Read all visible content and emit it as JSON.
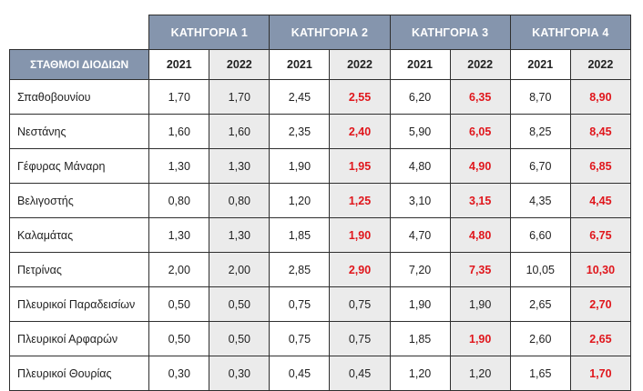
{
  "categories": [
    "ΚΑΤΗΓΟΡΙΑ 1",
    "ΚΑΤΗΓΟΡΙΑ 2",
    "ΚΑΤΗΓΟΡΙΑ 3",
    "ΚΑΤΗΓΟΡΙΑ 4"
  ],
  "stations_header": "ΣΤΑΘΜΟΙ ΔΙΟΔΙΩΝ",
  "years": [
    "2021",
    "2022"
  ],
  "colors": {
    "header_bg": "#8595ad",
    "header_text": "#ffffff",
    "increase_text": "#e0161c",
    "shaded_col": "#ebebeb"
  },
  "rows": [
    {
      "station": "Σπαθοβουνίου",
      "values": [
        "1,70",
        "1,70",
        "2,45",
        "2,55",
        "6,20",
        "6,35",
        "8,70",
        "8,90"
      ],
      "increased": [
        false,
        false,
        false,
        true,
        false,
        true,
        false,
        true
      ]
    },
    {
      "station": "Νεστάνης",
      "values": [
        "1,60",
        "1,60",
        "2,35",
        "2,40",
        "5,90",
        "6,05",
        "8,25",
        "8,45"
      ],
      "increased": [
        false,
        false,
        false,
        true,
        false,
        true,
        false,
        true
      ]
    },
    {
      "station": "Γέφυρας Μάναρη",
      "values": [
        "1,30",
        "1,30",
        "1,90",
        "1,95",
        "4,80",
        "4,90",
        "6,70",
        "6,85"
      ],
      "increased": [
        false,
        false,
        false,
        true,
        false,
        true,
        false,
        true
      ]
    },
    {
      "station": "Βελιγοστής",
      "values": [
        "0,80",
        "0,80",
        "1,20",
        "1,25",
        "3,10",
        "3,15",
        "4,35",
        "4,45"
      ],
      "increased": [
        false,
        false,
        false,
        true,
        false,
        true,
        false,
        true
      ]
    },
    {
      "station": "Καλαμάτας",
      "values": [
        "1,30",
        "1,30",
        "1,85",
        "1,90",
        "4,70",
        "4,80",
        "6,60",
        "6,75"
      ],
      "increased": [
        false,
        false,
        false,
        true,
        false,
        true,
        false,
        true
      ]
    },
    {
      "station": "Πετρίνας",
      "values": [
        "2,00",
        "2,00",
        "2,85",
        "2,90",
        "7,20",
        "7,35",
        "10,05",
        "10,30"
      ],
      "increased": [
        false,
        false,
        false,
        true,
        false,
        true,
        false,
        true
      ]
    },
    {
      "station": "Πλευρικοί Παραδεισίων",
      "values": [
        "0,50",
        "0,50",
        "0,75",
        "0,75",
        "1,90",
        "1,90",
        "2,65",
        "2,70"
      ],
      "increased": [
        false,
        false,
        false,
        false,
        false,
        false,
        false,
        true
      ]
    },
    {
      "station": "Πλευρικοί Αρφαρών",
      "values": [
        "0,50",
        "0,50",
        "0,75",
        "0,75",
        "1,85",
        "1,90",
        "2,60",
        "2,65"
      ],
      "increased": [
        false,
        false,
        false,
        false,
        false,
        true,
        false,
        true
      ]
    },
    {
      "station": "Πλευρικοί Θουρίας",
      "values": [
        "0,30",
        "0,30",
        "0,45",
        "0,45",
        "1,20",
        "1,20",
        "1,65",
        "1,70"
      ],
      "increased": [
        false,
        false,
        false,
        false,
        false,
        false,
        false,
        true
      ]
    }
  ]
}
